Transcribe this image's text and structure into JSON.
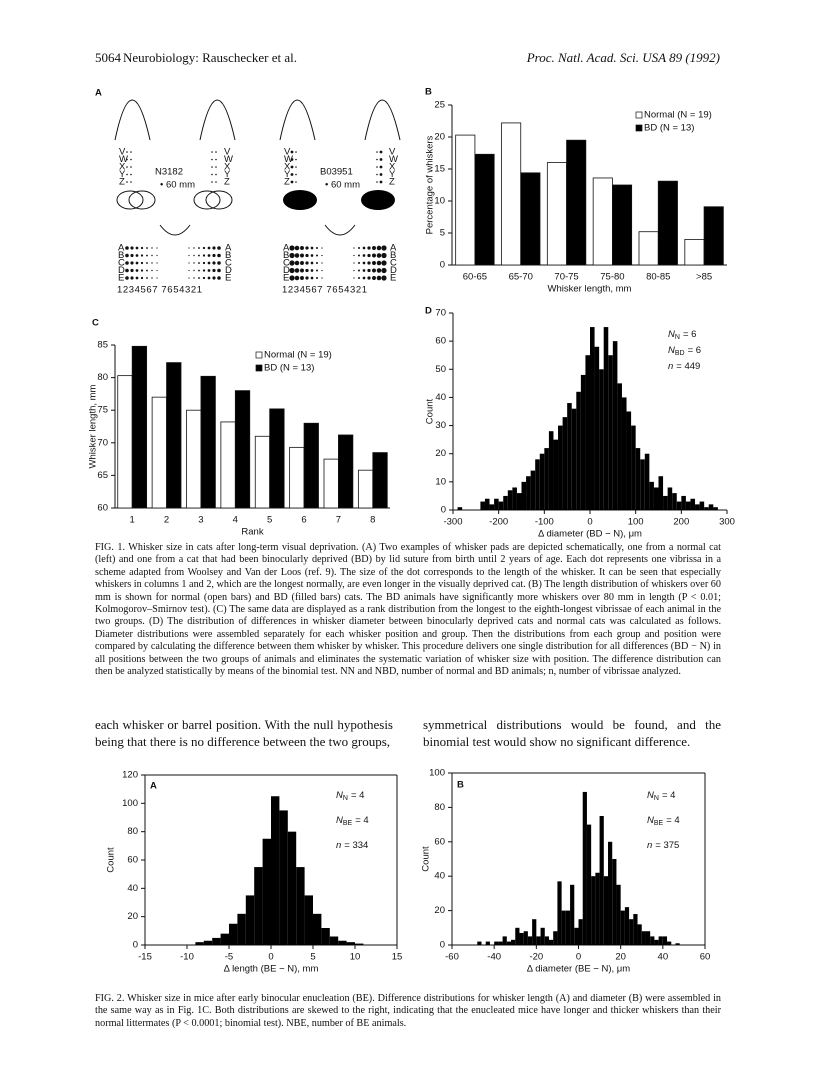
{
  "header": {
    "page_number": "5064",
    "running_title": "Neurobiology: Rauschecker et al.",
    "journal": "Proc. Natl. Acad. Sci. USA 89 (1992)"
  },
  "panel_a": {
    "label": "A",
    "left_id": "N3182",
    "right_id": "B03951",
    "scale": "• 60 mm",
    "rows_upper": [
      "V",
      "W",
      "X",
      "Y",
      "Z"
    ],
    "rows_lower": [
      "A",
      "B",
      "C",
      "D",
      "E"
    ],
    "columns": "1234567 7654321"
  },
  "chart_data": [
    {
      "type": "bar",
      "panel_label": "B",
      "ylabel": "Percentage of whiskers",
      "xlabel": "Whisker length, mm",
      "categories": [
        "60-65",
        "65-70",
        "70-75",
        "75-80",
        "80-85",
        ">85"
      ],
      "series": [
        {
          "name": "Normal (N = 19)",
          "color": "#ffffff",
          "values": [
            20.3,
            22.2,
            16,
            13.6,
            5.2,
            4
          ]
        },
        {
          "name": "BD (N = 13)",
          "color": "#000000",
          "values": [
            17.3,
            14.4,
            19.5,
            12.5,
            13.1,
            9.1
          ]
        }
      ],
      "ylim": [
        0,
        25
      ],
      "yticks": [
        0,
        5,
        10,
        15,
        20,
        25
      ],
      "legend": "upper right"
    },
    {
      "type": "bar",
      "panel_label": "C",
      "ylabel": "Whisker length, mm",
      "xlabel": "Rank",
      "categories": [
        "1",
        "2",
        "3",
        "4",
        "5",
        "6",
        "7",
        "8"
      ],
      "series": [
        {
          "name": "Normal (N = 19)",
          "color": "#ffffff",
          "values": [
            80.3,
            77,
            75,
            73.2,
            71,
            69.3,
            67.5,
            65.8
          ]
        },
        {
          "name": "BD (N = 13)",
          "color": "#000000",
          "values": [
            84.8,
            82.3,
            80.2,
            78,
            75.2,
            73,
            71.2,
            68.5
          ]
        }
      ],
      "ylim": [
        60,
        85
      ],
      "yticks": [
        60,
        65,
        70,
        75,
        80,
        85
      ],
      "legend": "upper center"
    },
    {
      "type": "histogram",
      "panel_label": "D",
      "ylabel": "Count",
      "xlabel": "Δ diameter (BD − N), μm",
      "color": "#000000",
      "bins": [
        -290,
        -280,
        -270,
        -260,
        -250,
        -240,
        -230,
        -220,
        -210,
        -200,
        -190,
        -180,
        -170,
        -160,
        -150,
        -140,
        -130,
        -120,
        -110,
        -100,
        -90,
        -80,
        -70,
        -60,
        -50,
        -40,
        -30,
        -20,
        -10,
        0,
        10,
        20,
        30,
        40,
        50,
        60,
        70,
        80,
        90,
        100,
        110,
        120,
        130,
        140,
        150,
        160,
        170,
        180,
        190,
        200,
        210,
        220,
        230,
        240,
        250,
        260,
        270,
        280
      ],
      "values": [
        1,
        0,
        0,
        0,
        0,
        3,
        4,
        2,
        4,
        3,
        5,
        7,
        8,
        6,
        10,
        12,
        14,
        18,
        20,
        22,
        28,
        25,
        30,
        33,
        38,
        36,
        42,
        48,
        55,
        65,
        58,
        50,
        65,
        55,
        60,
        45,
        40,
        35,
        30,
        22,
        18,
        20,
        10,
        8,
        12,
        5,
        8,
        6,
        3,
        5,
        3,
        4,
        2,
        3,
        1,
        2,
        1
      ],
      "xlim": [
        -300,
        300
      ],
      "xticks": [
        -300,
        -200,
        -100,
        0,
        100,
        200,
        300
      ],
      "ylim": [
        0,
        70
      ],
      "yticks": [
        0,
        10,
        20,
        30,
        40,
        50,
        60,
        70
      ],
      "annotations": [
        {
          "main": "N",
          "sub": "N",
          "rest": "= 6"
        },
        {
          "main": "N",
          "sub": "BD",
          "rest": "= 6"
        },
        {
          "main": "n",
          "rest": "= 449"
        }
      ]
    },
    {
      "type": "histogram",
      "panel_label": "A",
      "ylabel": "Count",
      "xlabel": "Δ length (BE − N), mm",
      "color": "#000000",
      "bins": [
        -9,
        -8,
        -7,
        -6,
        -5,
        -4,
        -3,
        -2,
        -1,
        0,
        1,
        2,
        3,
        4,
        5,
        6,
        7,
        8,
        9,
        10,
        11
      ],
      "values": [
        2,
        3,
        5,
        8,
        15,
        22,
        35,
        55,
        75,
        105,
        95,
        80,
        55,
        35,
        22,
        12,
        6,
        3,
        2,
        1
      ],
      "xlim": [
        -15,
        15
      ],
      "xticks": [
        -15,
        -10,
        -5,
        0,
        5,
        10,
        15
      ],
      "ylim": [
        0,
        120
      ],
      "yticks": [
        0,
        20,
        40,
        60,
        80,
        100,
        120
      ],
      "annotations": [
        {
          "main": "N",
          "sub": "N",
          "rest": "= 4"
        },
        {
          "main": "N",
          "sub": "BE",
          "rest": "= 4"
        },
        {
          "main": "n",
          "rest": "= 334"
        }
      ]
    },
    {
      "type": "histogram",
      "panel_label": "B",
      "ylabel": "Count",
      "xlabel": "Δ diameter (BE − N), μm",
      "color": "#000000",
      "bins": [
        -48,
        -46,
        -44,
        -42,
        -40,
        -38,
        -36,
        -34,
        -32,
        -30,
        -28,
        -26,
        -24,
        -22,
        -20,
        -18,
        -16,
        -14,
        -12,
        -10,
        -8,
        -6,
        -4,
        -2,
        0,
        2,
        4,
        6,
        8,
        10,
        12,
        14,
        16,
        18,
        20,
        22,
        24,
        26,
        28,
        30,
        32,
        34,
        36,
        38,
        40,
        42,
        44,
        46,
        48
      ],
      "values": [
        2,
        0,
        2,
        0,
        2,
        2,
        5,
        2,
        3,
        10,
        7,
        8,
        5,
        15,
        5,
        10,
        5,
        3,
        8,
        37,
        20,
        20,
        35,
        10,
        15,
        89,
        70,
        40,
        42,
        75,
        40,
        60,
        50,
        35,
        20,
        22,
        15,
        18,
        12,
        8,
        8,
        5,
        3,
        5,
        5,
        2,
        0,
        1
      ],
      "xlim": [
        -60,
        60
      ],
      "xticks": [
        -60,
        -40,
        -20,
        0,
        20,
        40,
        60
      ],
      "ylim": [
        0,
        100
      ],
      "yticks": [
        0,
        20,
        40,
        60,
        80,
        100
      ],
      "annotations": [
        {
          "main": "N",
          "sub": "N",
          "rest": "= 4"
        },
        {
          "main": "N",
          "sub": "BE",
          "rest": "= 4"
        },
        {
          "main": "n",
          "rest": "= 375"
        }
      ]
    }
  ],
  "caption_1": "FIG. 1. Whisker size in cats after long-term visual deprivation. (A) Two examples of whisker pads are depicted schematically, one from a normal cat (left) and one from a cat that had been binocularly deprived (BD) by lid suture from birth until 2 years of age. Each dot represents one vibrissa in a scheme adapted from Woolsey and Van der Loos (ref. 9). The size of the dot corresponds to the length of the whisker. It can be seen that especially whiskers in columns 1 and 2, which are the longest normally, are even longer in the visually deprived cat. (B) The length distribution of whiskers over 60 mm is shown for normal (open bars) and BD (filled bars) cats. The BD animals have significantly more whiskers over 80 mm in length (P < 0.01; Kolmogorov–Smirnov test). (C) The same data are displayed as a rank distribution from the longest to the eighth-longest vibrissae of each animal in the two groups. (D) The distribution of differences in whisker diameter between binocularly deprived cats and normal cats was calculated as follows. Diameter distributions were assembled separately for each whisker position and group. Then the distributions from each group and position were compared by calculating the difference between them whisker by whisker. This procedure delivers one single distribution for all differences (BD − N) in all positions between the two groups of animals and eliminates the systematic variation of whisker size with position. The difference distribution can then be analyzed statistically by means of the binomial test. NN and NBD, number of normal and BD animals; n, number of vibrissae analyzed.",
  "body": {
    "left": "each whisker or barrel position. With the null hypothesis being that there is no difference between the two groups,",
    "right": "symmetrical distributions would be found, and the binomial test would show no significant difference."
  },
  "caption_2": "FIG. 2. Whisker size in mice after early binocular enucleation (BE). Difference distributions for whisker length (A) and diameter (B) were assembled in the same way as in Fig. 1C. Both distributions are skewed to the right, indicating that the enucleated mice have longer and thicker whiskers than their normal littermates (P < 0.0001; binomial test). NBE, number of BE animals."
}
